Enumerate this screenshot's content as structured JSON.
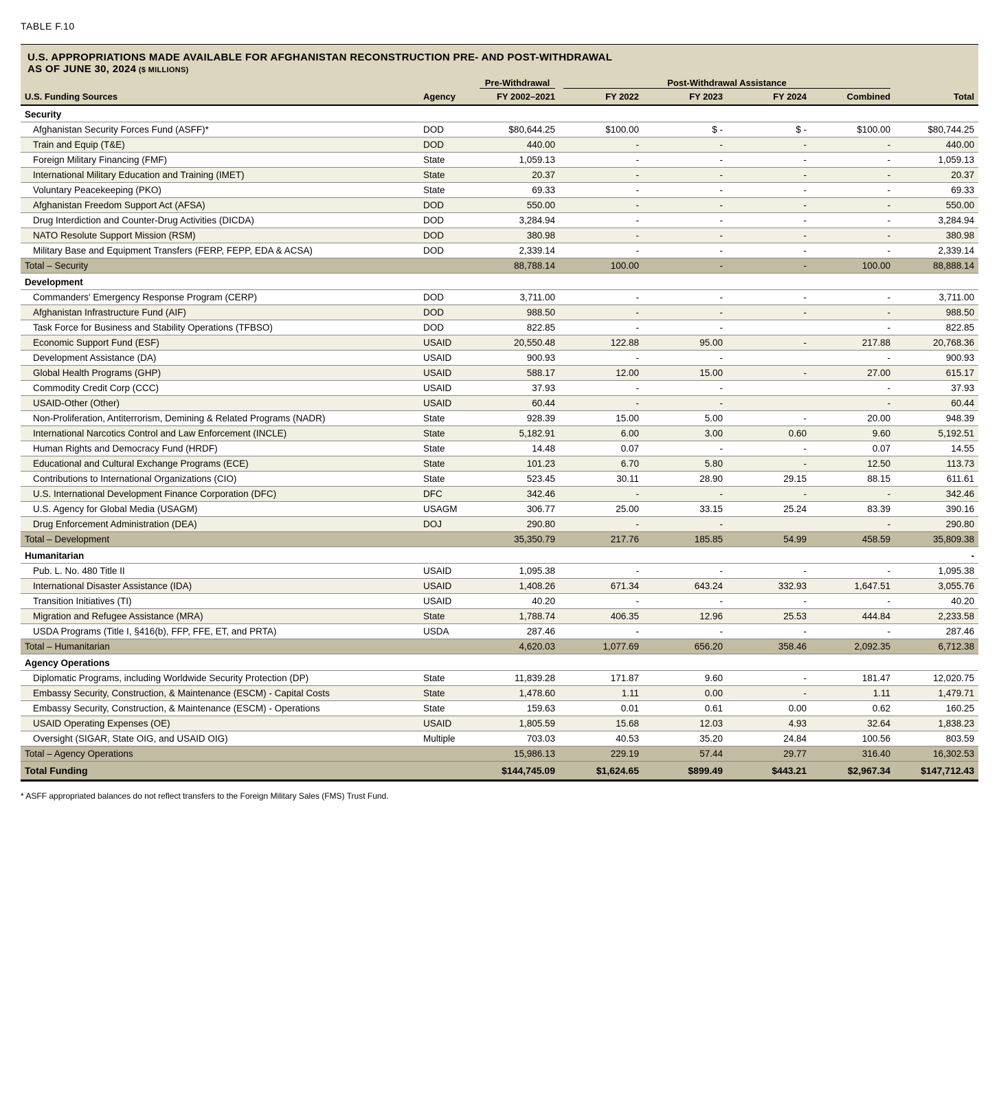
{
  "table_label": "TABLE F.10",
  "title_line1": "U.S. APPROPRIATIONS MADE AVAILABLE FOR AFGHANISTAN RECONSTRUCTION PRE- AND POST-WITHDRAWAL",
  "title_line2": "AS OF JUNE 30, 2024",
  "title_unit": "($ MILLIONS)",
  "headers": {
    "pre_group": "Pre-Withdrawal",
    "post_group": "Post-Withdrawal Assistance",
    "source": "U.S. Funding Sources",
    "agency": "Agency",
    "pre": "FY 2002–2021",
    "fy22": "FY 2022",
    "fy23": "FY 2023",
    "fy24": "FY 2024",
    "combined": "Combined",
    "total": "Total"
  },
  "sections": [
    {
      "name": "Security",
      "rows": [
        {
          "source": "Afghanistan Security Forces Fund (ASFF)*",
          "agency": "DOD",
          "pre": "$80,644.25",
          "fy22": "$100.00",
          "fy23": "$ -",
          "fy24": "$ -",
          "combined": "$100.00",
          "total": "$80,744.25"
        },
        {
          "source": "Train and Equip (T&E)",
          "agency": "DOD",
          "pre": "440.00",
          "fy22": "-",
          "fy23": "-",
          "fy24": "-",
          "combined": "-",
          "total": "440.00"
        },
        {
          "source": "Foreign Military Financing (FMF)",
          "agency": "State",
          "pre": "1,059.13",
          "fy22": "-",
          "fy23": "-",
          "fy24": "-",
          "combined": "-",
          "total": "1,059.13"
        },
        {
          "source": "International Military Education and Training (IMET)",
          "agency": "State",
          "pre": "20.37",
          "fy22": "-",
          "fy23": "-",
          "fy24": "-",
          "combined": "-",
          "total": "20.37"
        },
        {
          "source": "Voluntary Peacekeeping (PKO)",
          "agency": "State",
          "pre": "69.33",
          "fy22": "-",
          "fy23": "-",
          "fy24": "-",
          "combined": "-",
          "total": "69.33"
        },
        {
          "source": "Afghanistan Freedom Support Act (AFSA)",
          "agency": "DOD",
          "pre": "550.00",
          "fy22": "-",
          "fy23": "-",
          "fy24": "-",
          "combined": "-",
          "total": "550.00"
        },
        {
          "source": "Drug Interdiction and Counter-Drug Activities (DICDA)",
          "agency": "DOD",
          "pre": "3,284.94",
          "fy22": "-",
          "fy23": "-",
          "fy24": "-",
          "combined": "-",
          "total": "3,284.94"
        },
        {
          "source": "NATO Resolute Support Mission (RSM)",
          "agency": "DOD",
          "pre": "380.98",
          "fy22": "-",
          "fy23": "-",
          "fy24": "-",
          "combined": "-",
          "total": "380.98"
        },
        {
          "source": "Military Base and Equipment Transfers (FERP, FEPP, EDA & ACSA)",
          "agency": "DOD",
          "pre": "2,339.14",
          "fy22": "-",
          "fy23": "-",
          "fy24": "-",
          "combined": "-",
          "total": "2,339.14"
        }
      ],
      "subtotal": {
        "label": "Total – Security",
        "pre": "88,788.14",
        "fy22": "100.00",
        "fy23": "-",
        "fy24": "-",
        "combined": "100.00",
        "total": "88,888.14"
      }
    },
    {
      "name": "Development",
      "rows": [
        {
          "source": "Commanders' Emergency Response Program (CERP)",
          "agency": "DOD",
          "pre": "3,711.00",
          "fy22": "-",
          "fy23": "-",
          "fy24": "-",
          "combined": "-",
          "total": "3,711.00"
        },
        {
          "source": "Afghanistan Infrastructure Fund (AIF)",
          "agency": "DOD",
          "pre": "988.50",
          "fy22": "-",
          "fy23": "-",
          "fy24": "-",
          "combined": "-",
          "total": "988.50"
        },
        {
          "source": "Task Force for Business and Stability Operations (TFBSO)",
          "agency": "DOD",
          "pre": "822.85",
          "fy22": "-",
          "fy23": "-",
          "fy24": "",
          "combined": "-",
          "total": "822.85"
        },
        {
          "source": "Economic Support Fund (ESF)",
          "agency": "USAID",
          "pre": "20,550.48",
          "fy22": "122.88",
          "fy23": "95.00",
          "fy24": "-",
          "combined": "217.88",
          "total": "20,768.36"
        },
        {
          "source": "Development Assistance (DA)",
          "agency": "USAID",
          "pre": "900.93",
          "fy22": "-",
          "fy23": "-",
          "fy24": "",
          "combined": "-",
          "total": "900.93"
        },
        {
          "source": "Global Health Programs (GHP)",
          "agency": "USAID",
          "pre": "588.17",
          "fy22": "12.00",
          "fy23": "15.00",
          "fy24": "-",
          "combined": "27.00",
          "total": "615.17"
        },
        {
          "source": "Commodity Credit Corp (CCC)",
          "agency": "USAID",
          "pre": "37.93",
          "fy22": "-",
          "fy23": "-",
          "fy24": "",
          "combined": "-",
          "total": "37.93"
        },
        {
          "source": "USAID-Other (Other)",
          "agency": "USAID",
          "pre": "60.44",
          "fy22": "-",
          "fy23": "-",
          "fy24": "",
          "combined": "-",
          "total": "60.44"
        },
        {
          "source": "Non-Proliferation, Antiterrorism, Demining & Related Programs (NADR)",
          "agency": "State",
          "pre": "928.39",
          "fy22": "15.00",
          "fy23": "5.00",
          "fy24": "-",
          "combined": "20.00",
          "total": "948.39"
        },
        {
          "source": "International Narcotics Control and Law Enforcement (INCLE)",
          "agency": "State",
          "pre": "5,182.91",
          "fy22": "6.00",
          "fy23": "3.00",
          "fy24": "0.60",
          "combined": "9.60",
          "total": "5,192.51"
        },
        {
          "source": "Human Rights and Democracy Fund (HRDF)",
          "agency": "State",
          "pre": "14.48",
          "fy22": "0.07",
          "fy23": "-",
          "fy24": "-",
          "combined": "0.07",
          "total": "14.55"
        },
        {
          "source": "Educational and Cultural Exchange Programs (ECE)",
          "agency": "State",
          "pre": "101.23",
          "fy22": "6.70",
          "fy23": "5.80",
          "fy24": "-",
          "combined": "12.50",
          "total": "113.73"
        },
        {
          "source": "Contributions to International Organizations (CIO)",
          "agency": "State",
          "pre": "523.45",
          "fy22": "30.11",
          "fy23": "28.90",
          "fy24": "29.15",
          "combined": "88.15",
          "total": "611.61"
        },
        {
          "source": "U.S. International Development Finance Corporation (DFC)",
          "agency": "DFC",
          "pre": "342.46",
          "fy22": "-",
          "fy23": "-",
          "fy24": "-",
          "combined": "-",
          "total": "342.46"
        },
        {
          "source": "U.S. Agency for Global Media (USAGM)",
          "agency": "USAGM",
          "pre": "306.77",
          "fy22": "25.00",
          "fy23": "33.15",
          "fy24": "25.24",
          "combined": "83.39",
          "total": "390.16"
        },
        {
          "source": "Drug Enforcement Administration (DEA)",
          "agency": "DOJ",
          "pre": "290.80",
          "fy22": "-",
          "fy23": "-",
          "fy24": "",
          "combined": "-",
          "total": "290.80"
        }
      ],
      "subtotal": {
        "label": "Total – Development",
        "pre": "35,350.79",
        "fy22": "217.76",
        "fy23": "185.85",
        "fy24": "54.99",
        "combined": "458.59",
        "total": "35,809.38"
      }
    },
    {
      "name": "Humanitarian",
      "header_total": "-",
      "rows": [
        {
          "source": "Pub. L. No. 480 Title II",
          "agency": "USAID",
          "pre": "1,095.38",
          "fy22": "-",
          "fy23": "-",
          "fy24": "-",
          "combined": "-",
          "total": "1,095.38"
        },
        {
          "source": "International Disaster Assistance (IDA)",
          "agency": "USAID",
          "pre": "1,408.26",
          "fy22": "671.34",
          "fy23": "643.24",
          "fy24": "332.93",
          "combined": "1,647.51",
          "total": "3,055.76"
        },
        {
          "source": "Transition Initiatives (TI)",
          "agency": "USAID",
          "pre": "40.20",
          "fy22": "-",
          "fy23": "-",
          "fy24": "-",
          "combined": "-",
          "total": "40.20"
        },
        {
          "source": "Migration and Refugee Assistance (MRA)",
          "agency": "State",
          "pre": "1,788.74",
          "fy22": "406.35",
          "fy23": "12.96",
          "fy24": "25.53",
          "combined": "444.84",
          "total": "2,233.58"
        },
        {
          "source": "USDA Programs (Title I, §416(b), FFP, FFE, ET, and PRTA)",
          "agency": "USDA",
          "pre": "287.46",
          "fy22": "-",
          "fy23": "-",
          "fy24": "-",
          "combined": "-",
          "total": "287.46"
        }
      ],
      "subtotal": {
        "label": "Total – Humanitarian",
        "pre": "4,620.03",
        "fy22": "1,077.69",
        "fy23": "656.20",
        "fy24": "358.46",
        "combined": "2,092.35",
        "total": "6,712.38"
      }
    },
    {
      "name": "Agency Operations",
      "rows": [
        {
          "source": "Diplomatic Programs, including Worldwide Security Protection (DP)",
          "agency": "State",
          "pre": "11,839.28",
          "fy22": "171.87",
          "fy23": "9.60",
          "fy24": "-",
          "combined": "181.47",
          "total": "12,020.75"
        },
        {
          "source": "Embassy Security, Construction, & Maintenance (ESCM) - Capital Costs",
          "agency": "State",
          "pre": "1,478.60",
          "fy22": "1.11",
          "fy23": "0.00",
          "fy24": "-",
          "combined": "1.11",
          "total": "1,479.71"
        },
        {
          "source": "Embassy Security, Construction, & Maintenance (ESCM) - Operations",
          "agency": "State",
          "pre": "159.63",
          "fy22": "0.01",
          "fy23": "0.61",
          "fy24": "0.00",
          "combined": "0.62",
          "total": "160.25"
        },
        {
          "source": "USAID Operating Expenses (OE)",
          "agency": "USAID",
          "pre": "1,805.59",
          "fy22": "15.68",
          "fy23": "12.03",
          "fy24": "4.93",
          "combined": "32.64",
          "total": "1,838.23"
        },
        {
          "source": "Oversight (SIGAR, State OIG, and USAID OIG)",
          "agency": "Multiple",
          "pre": "703.03",
          "fy22": "40.53",
          "fy23": "35.20",
          "fy24": "24.84",
          "combined": "100.56",
          "total": "803.59"
        }
      ],
      "subtotal": {
        "label": "Total – Agency Operations",
        "pre": "15,986.13",
        "fy22": "229.19",
        "fy23": "57.44",
        "fy24": "29.77",
        "combined": "316.40",
        "total": "16,302.53"
      }
    }
  ],
  "grand": {
    "label": "Total Funding",
    "pre": "$144,745.09",
    "fy22": "$1,624.65",
    "fy23": "$899.49",
    "fy24": "$443.21",
    "combined": "$2,967.34",
    "total": "$147,712.43"
  },
  "footnote": "* ASFF appropriated balances do not reflect transfers to the Foreign Military Sales (FMS) Trust Fund.",
  "colors": {
    "header_bg": "#dcd6bf",
    "subtotal_bg": "#c2bca3",
    "alt_row_bg": "#f2efe3"
  }
}
